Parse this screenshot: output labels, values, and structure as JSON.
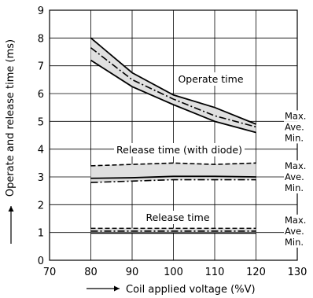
{
  "chart_data": {
    "type": "line",
    "title": "",
    "xlabel": "Coil applied voltage (%V)",
    "ylabel": "Operate and release time (ms)",
    "xlim": [
      70,
      130
    ],
    "ylim": [
      0,
      9
    ],
    "x_ticks": [
      70,
      80,
      90,
      100,
      110,
      120,
      130
    ],
    "y_ticks": [
      0,
      1,
      2,
      3,
      4,
      5,
      6,
      7,
      8,
      9
    ],
    "grid": true,
    "groups": [
      {
        "name": "Operate time",
        "x": [
          80,
          90,
          100,
          110,
          120
        ],
        "series": [
          {
            "name": "Max.",
            "style": "solid",
            "values": [
              8.0,
              6.75,
              5.95,
              5.5,
              4.9
            ]
          },
          {
            "name": "Ave.",
            "style": "dashdot",
            "values": [
              7.65,
              6.5,
              5.8,
              5.2,
              4.8
            ]
          },
          {
            "name": "Min.",
            "style": "solid",
            "values": [
              7.2,
              6.25,
              5.6,
              5.0,
              4.6
            ]
          }
        ]
      },
      {
        "name": "Release time (with diode)",
        "x": [
          80,
          90,
          100,
          110,
          120
        ],
        "series": [
          {
            "name": "Max.",
            "style": "dashed",
            "values": [
              3.4,
              3.45,
              3.5,
              3.45,
              3.5
            ]
          },
          {
            "name": "Ave.",
            "style": "solid",
            "values": [
              2.95,
              2.97,
              3.02,
              3.02,
              3.0
            ]
          },
          {
            "name": "Min.",
            "style": "dashdot",
            "values": [
              2.8,
              2.85,
              2.9,
              2.9,
              2.9
            ]
          }
        ]
      },
      {
        "name": "Release time",
        "x": [
          80,
          90,
          100,
          110,
          120
        ],
        "series": [
          {
            "name": "Max.",
            "style": "dashed",
            "values": [
              1.15,
              1.15,
              1.15,
              1.15,
              1.15
            ]
          },
          {
            "name": "Ave.",
            "style": "dashdot",
            "values": [
              1.05,
              1.05,
              1.05,
              1.05,
              1.05
            ]
          },
          {
            "name": "Min.",
            "style": "solid",
            "values": [
              0.98,
              0.98,
              0.98,
              0.98,
              0.98
            ]
          }
        ]
      }
    ],
    "colors": {
      "band_fill": "#e0e0e0",
      "line": "#000000",
      "grid": "#000000"
    }
  }
}
